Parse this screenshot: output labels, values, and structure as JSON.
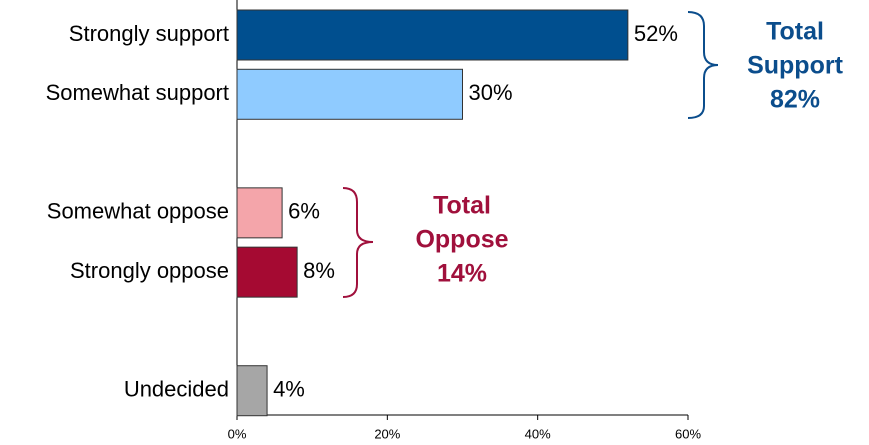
{
  "chart_data": {
    "type": "hbar",
    "categories": [
      "Strongly support",
      "Somewhat support",
      null,
      "Somewhat oppose",
      "Strongly oppose",
      null,
      "Undecided"
    ],
    "values": [
      52,
      30,
      null,
      6,
      8,
      null,
      4
    ],
    "value_labels": [
      "52%",
      "30%",
      null,
      "6%",
      "8%",
      null,
      "4%"
    ],
    "colors": [
      "#004f8f",
      "#8fcbff",
      null,
      "#f4a5aa",
      "#a50a32",
      null,
      "#a6a6a6"
    ],
    "xlim": [
      0,
      60
    ],
    "xticks": [
      {
        "value": 0,
        "label": "0%"
      },
      {
        "value": 20,
        "label": "20%"
      },
      {
        "value": 40,
        "label": "40%"
      },
      {
        "value": 60,
        "label": "60%"
      }
    ],
    "annotations": [
      {
        "lines": [
          "Total",
          "Support",
          "82%"
        ],
        "color": "#0b4d8c"
      },
      {
        "lines": [
          "Total",
          "Oppose",
          "14%"
        ],
        "color": "#a0103c"
      }
    ]
  }
}
